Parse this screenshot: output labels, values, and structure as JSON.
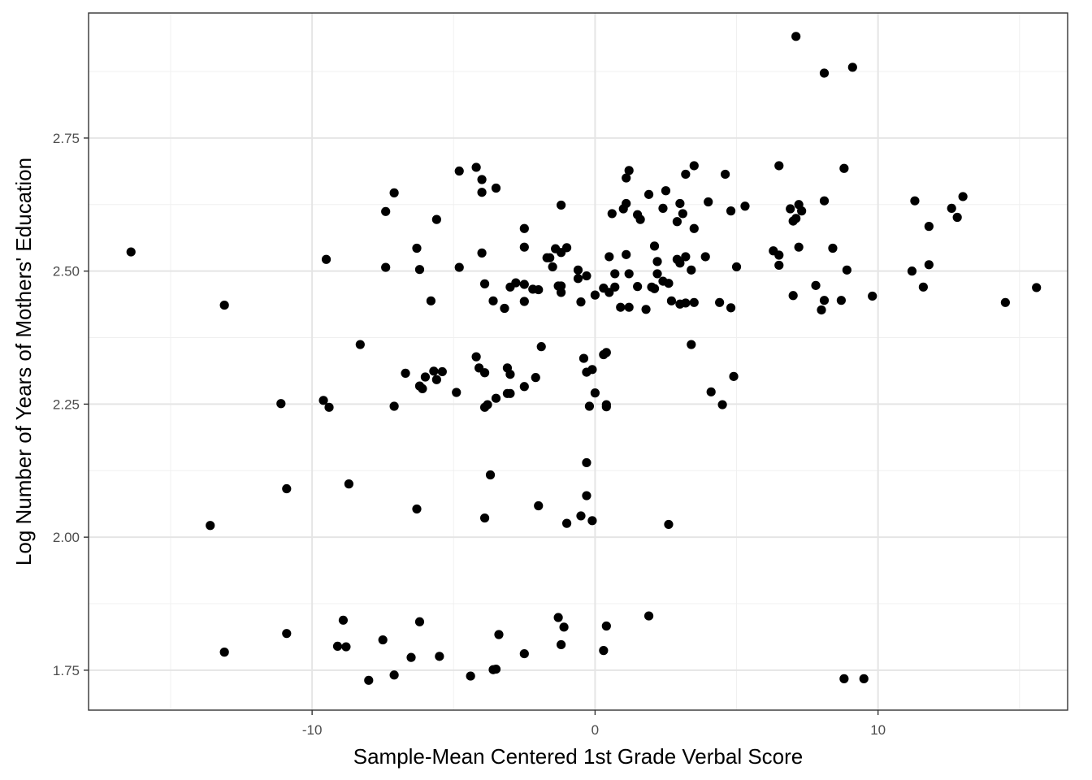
{
  "chart_data": {
    "type": "scatter",
    "title": "",
    "xlabel": "Sample-Mean Centered 1st Grade Verbal Score",
    "ylabel": "Log Number of Years of Mothers' Education",
    "xlim": [
      -17.9,
      16.7
    ],
    "ylim": [
      1.675,
      2.985
    ],
    "x_ticks": [
      -10,
      0,
      10
    ],
    "x_tick_labels": [
      "-10",
      "0",
      "10"
    ],
    "y_ticks": [
      1.75,
      2.0,
      2.25,
      2.5,
      2.75
    ],
    "y_tick_labels": [
      "1.75",
      "2.00",
      "2.25",
      "2.50",
      "2.75"
    ],
    "grid": true,
    "point_color": "#000000",
    "points": [
      [
        -16.4,
        2.536
      ],
      [
        -13.1,
        2.436
      ],
      [
        -13.6,
        2.022
      ],
      [
        -13.1,
        1.784
      ],
      [
        -11.1,
        2.251
      ],
      [
        -10.9,
        2.091
      ],
      [
        -10.9,
        1.819
      ],
      [
        -9.5,
        2.522
      ],
      [
        -9.6,
        2.257
      ],
      [
        -9.4,
        2.244
      ],
      [
        -9.1,
        1.795
      ],
      [
        -8.9,
        1.844
      ],
      [
        -8.8,
        1.794
      ],
      [
        -8.7,
        2.1
      ],
      [
        -8.3,
        2.362
      ],
      [
        -7.4,
        2.612
      ],
      [
        -7.4,
        2.507
      ],
      [
        -7.1,
        2.647
      ],
      [
        -7.1,
        2.246
      ],
      [
        -7.5,
        1.807
      ],
      [
        -8.0,
        1.731
      ],
      [
        -7.1,
        1.741
      ],
      [
        -6.7,
        2.308
      ],
      [
        -6.3,
        2.543
      ],
      [
        -6.2,
        2.503
      ],
      [
        -6.2,
        2.284
      ],
      [
        -6.1,
        2.279
      ],
      [
        -6.0,
        2.301
      ],
      [
        -6.3,
        2.053
      ],
      [
        -6.2,
        1.841
      ],
      [
        -6.5,
        1.774
      ],
      [
        -5.8,
        2.444
      ],
      [
        -5.6,
        2.597
      ],
      [
        -5.6,
        2.296
      ],
      [
        -5.4,
        2.311
      ],
      [
        -5.7,
        2.312
      ],
      [
        -5.5,
        1.776
      ],
      [
        -4.8,
        2.688
      ],
      [
        -4.8,
        2.507
      ],
      [
        -4.9,
        2.272
      ],
      [
        -4.4,
        1.739
      ],
      [
        -4.2,
        2.695
      ],
      [
        -4.0,
        2.672
      ],
      [
        -4.0,
        2.648
      ],
      [
        -4.0,
        2.534
      ],
      [
        -3.9,
        2.476
      ],
      [
        -4.1,
        2.318
      ],
      [
        -3.9,
        2.309
      ],
      [
        -4.2,
        2.339
      ],
      [
        -3.9,
        2.244
      ],
      [
        -3.8,
        2.249
      ],
      [
        -3.9,
        2.036
      ],
      [
        -3.5,
        2.656
      ],
      [
        -3.6,
        2.444
      ],
      [
        -3.5,
        2.261
      ],
      [
        -3.7,
        2.117
      ],
      [
        -3.6,
        1.751
      ],
      [
        -3.5,
        1.752
      ],
      [
        -3.4,
        1.817
      ],
      [
        -3.2,
        2.43
      ],
      [
        -3.0,
        2.47
      ],
      [
        -3.1,
        2.318
      ],
      [
        -3.0,
        2.306
      ],
      [
        -3.1,
        2.27
      ],
      [
        -3.0,
        2.27
      ],
      [
        -2.8,
        2.478
      ],
      [
        -2.5,
        2.58
      ],
      [
        -2.5,
        2.545
      ],
      [
        -2.5,
        2.475
      ],
      [
        -2.5,
        2.443
      ],
      [
        -2.5,
        2.283
      ],
      [
        -2.5,
        1.781
      ],
      [
        -2.2,
        2.466
      ],
      [
        -2.1,
        2.3
      ],
      [
        -2.0,
        2.059
      ],
      [
        -2.0,
        2.465
      ],
      [
        -1.9,
        2.358
      ],
      [
        -1.7,
        2.525
      ],
      [
        -1.6,
        2.525
      ],
      [
        -1.5,
        2.508
      ],
      [
        -1.4,
        2.542
      ],
      [
        -1.3,
        2.472
      ],
      [
        -1.2,
        2.472
      ],
      [
        -1.2,
        2.535
      ],
      [
        -1.2,
        2.624
      ],
      [
        -1.2,
        2.46
      ],
      [
        -1.3,
        1.849
      ],
      [
        -1.2,
        1.798
      ],
      [
        -1.1,
        1.831
      ],
      [
        -1.0,
        2.544
      ],
      [
        -1.0,
        2.026
      ],
      [
        -0.6,
        2.502
      ],
      [
        -0.6,
        2.486
      ],
      [
        -0.5,
        2.442
      ],
      [
        -0.5,
        2.04
      ],
      [
        -0.3,
        2.491
      ],
      [
        -0.4,
        2.336
      ],
      [
        -0.3,
        2.31
      ],
      [
        -0.2,
        2.246
      ],
      [
        -0.1,
        2.315
      ],
      [
        -0.3,
        2.14
      ],
      [
        -0.3,
        2.078
      ],
      [
        -0.1,
        2.031
      ],
      [
        0.0,
        2.455
      ],
      [
        0.0,
        2.271
      ],
      [
        0.3,
        2.468
      ],
      [
        0.3,
        2.343
      ],
      [
        0.4,
        2.347
      ],
      [
        0.4,
        2.249
      ],
      [
        0.4,
        2.245
      ],
      [
        0.3,
        1.787
      ],
      [
        0.4,
        1.833
      ],
      [
        0.5,
        2.527
      ],
      [
        0.5,
        2.46
      ],
      [
        0.6,
        2.608
      ],
      [
        0.7,
        2.47
      ],
      [
        0.7,
        2.495
      ],
      [
        1.0,
        2.617
      ],
      [
        0.9,
        2.432
      ],
      [
        1.1,
        2.627
      ],
      [
        1.1,
        2.675
      ],
      [
        1.2,
        2.689
      ],
      [
        1.1,
        2.531
      ],
      [
        1.2,
        2.495
      ],
      [
        1.2,
        2.432
      ],
      [
        1.5,
        2.606
      ],
      [
        1.6,
        2.597
      ],
      [
        1.5,
        2.471
      ],
      [
        1.8,
        2.428
      ],
      [
        1.9,
        2.644
      ],
      [
        2.0,
        2.47
      ],
      [
        2.1,
        2.547
      ],
      [
        2.1,
        2.467
      ],
      [
        2.2,
        2.495
      ],
      [
        2.2,
        2.518
      ],
      [
        1.9,
        1.852
      ],
      [
        2.4,
        2.618
      ],
      [
        2.5,
        2.651
      ],
      [
        2.4,
        2.481
      ],
      [
        2.6,
        2.477
      ],
      [
        2.7,
        2.444
      ],
      [
        2.6,
        2.024
      ],
      [
        2.9,
        2.593
      ],
      [
        3.0,
        2.627
      ],
      [
        2.9,
        2.522
      ],
      [
        3.0,
        2.515
      ],
      [
        3.0,
        2.438
      ],
      [
        3.1,
        2.608
      ],
      [
        3.2,
        2.682
      ],
      [
        3.2,
        2.527
      ],
      [
        3.2,
        2.44
      ],
      [
        3.4,
        2.502
      ],
      [
        3.5,
        2.698
      ],
      [
        3.5,
        2.58
      ],
      [
        3.5,
        2.441
      ],
      [
        3.4,
        2.362
      ],
      [
        3.9,
        2.527
      ],
      [
        4.0,
        2.63
      ],
      [
        4.1,
        2.273
      ],
      [
        4.4,
        2.441
      ],
      [
        4.6,
        2.682
      ],
      [
        4.5,
        2.249
      ],
      [
        4.8,
        2.613
      ],
      [
        4.8,
        2.431
      ],
      [
        4.9,
        2.302
      ],
      [
        5.0,
        2.508
      ],
      [
        5.3,
        2.622
      ],
      [
        6.3,
        2.538
      ],
      [
        6.5,
        2.698
      ],
      [
        6.5,
        2.53
      ],
      [
        6.5,
        2.511
      ],
      [
        6.9,
        2.617
      ],
      [
        7.0,
        2.594
      ],
      [
        7.1,
        2.599
      ],
      [
        7.1,
        2.941
      ],
      [
        7.2,
        2.625
      ],
      [
        7.2,
        2.545
      ],
      [
        7.3,
        2.613
      ],
      [
        7.0,
        2.454
      ],
      [
        7.8,
        2.473
      ],
      [
        8.0,
        2.427
      ],
      [
        8.1,
        2.445
      ],
      [
        8.1,
        2.632
      ],
      [
        8.1,
        2.872
      ],
      [
        8.4,
        2.543
      ],
      [
        8.7,
        2.445
      ],
      [
        8.8,
        2.693
      ],
      [
        8.8,
        1.734
      ],
      [
        8.9,
        2.502
      ],
      [
        9.1,
        2.883
      ],
      [
        9.5,
        1.734
      ],
      [
        9.8,
        2.453
      ],
      [
        11.2,
        2.5
      ],
      [
        11.3,
        2.632
      ],
      [
        11.6,
        2.47
      ],
      [
        11.8,
        2.584
      ],
      [
        11.8,
        2.512
      ],
      [
        12.6,
        2.618
      ],
      [
        12.8,
        2.601
      ],
      [
        13.0,
        2.64
      ],
      [
        14.5,
        2.441
      ],
      [
        15.6,
        2.469
      ]
    ]
  }
}
